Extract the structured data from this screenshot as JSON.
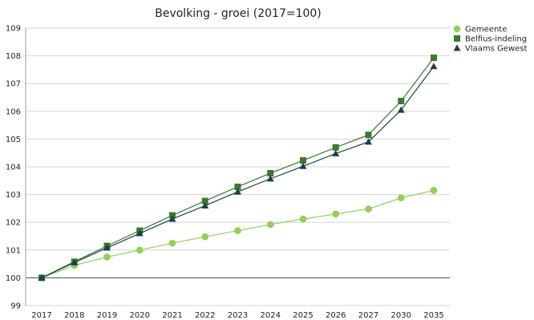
{
  "chart_data": {
    "type": "line",
    "title": "Bevolking - groei (2017=100)",
    "xlabel": "",
    "ylabel": "",
    "categories": [
      "2017",
      "2018",
      "2019",
      "2020",
      "2021",
      "2022",
      "2023",
      "2024",
      "2025",
      "2026",
      "2027",
      "2030",
      "2035"
    ],
    "ylim": [
      99,
      109
    ],
    "yticks": [
      "99",
      "100",
      "101",
      "102",
      "103",
      "104",
      "105",
      "106",
      "107",
      "108",
      "109"
    ],
    "grid": "horizontal",
    "legend_position": "top-right",
    "series": [
      {
        "name": "Gemeente",
        "marker": "circle",
        "color": "#8fcf5a",
        "values": [
          100.0,
          100.45,
          100.75,
          101.0,
          101.25,
          101.48,
          101.7,
          101.92,
          102.12,
          102.3,
          102.48,
          102.88,
          103.15
        ]
      },
      {
        "name": "Belfius-indeling",
        "marker": "square",
        "color": "#3b7a2e",
        "values": [
          100.0,
          100.58,
          101.15,
          101.7,
          102.25,
          102.77,
          103.28,
          103.77,
          104.23,
          104.7,
          105.15,
          106.37,
          107.93
        ]
      },
      {
        "name": "Vlaams Gewest",
        "marker": "triangle",
        "color": "#1f3f4a",
        "values": [
          100.0,
          100.55,
          101.08,
          101.6,
          102.12,
          102.6,
          103.1,
          103.57,
          104.02,
          104.48,
          104.9,
          106.05,
          107.62
        ]
      }
    ]
  }
}
